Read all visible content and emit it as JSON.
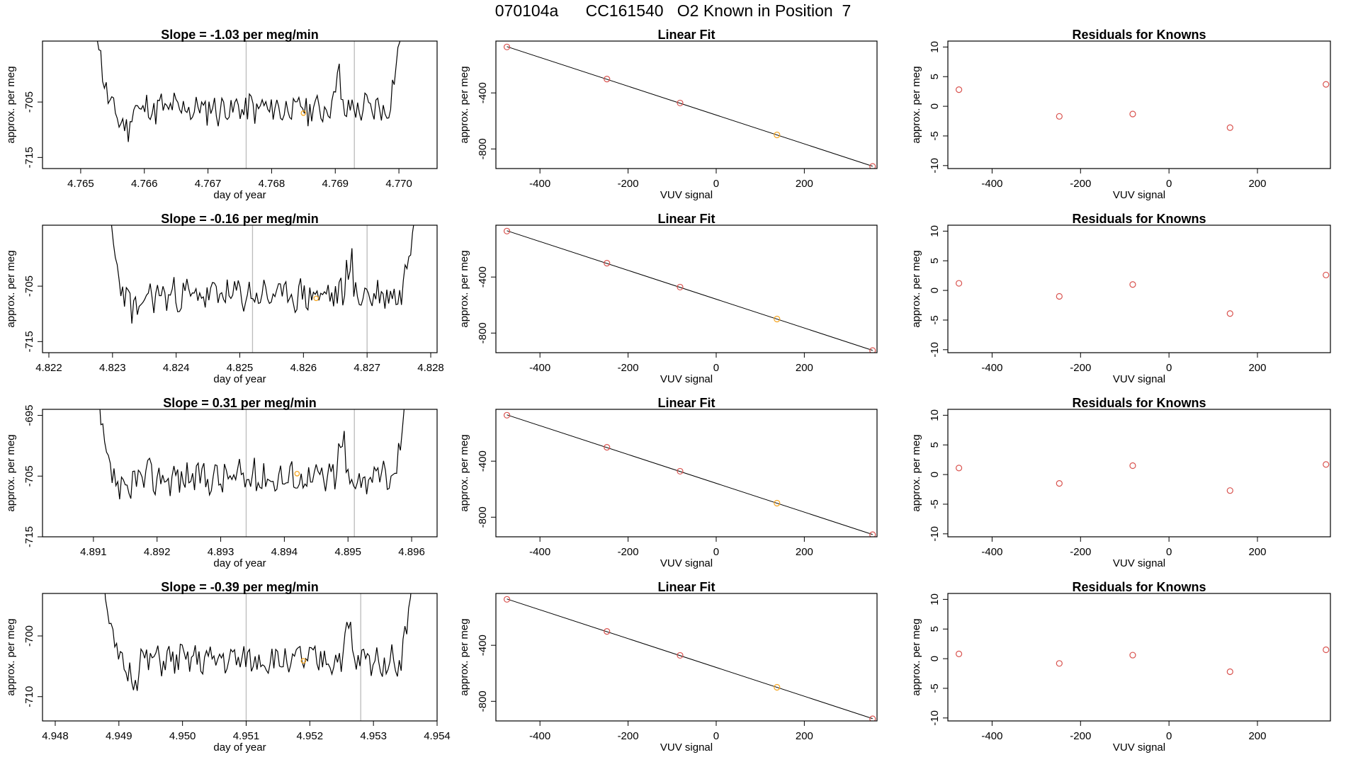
{
  "title": {
    "run_id": "070104a",
    "cylinder": "CC161540",
    "description": "O2 Known in Position  7"
  },
  "colors": {
    "trace": "#000000",
    "known_point": "#f5a623",
    "fit_point": "#d9534f",
    "vline": "#bbbbbb"
  },
  "rows": [
    {
      "series": {
        "type": "line",
        "title": "Slope =  -1.03  per meg/min",
        "xlabel": "day of year",
        "ylabel": "approx. per meg",
        "xlim": [
          4.7644,
          4.7706
        ],
        "ylim": [
          -717,
          -694
        ],
        "xticks": [
          "4.765",
          "4.766",
          "4.767",
          "4.768",
          "4.769",
          "4.770"
        ],
        "yticks": [
          "-705",
          "-715"
        ],
        "vlines": [
          4.7676,
          4.7693
        ],
        "start": 4.7652,
        "end": 4.7701,
        "base": -706.2,
        "amp": 2.6,
        "seed": 11,
        "known_point": [
          4.7685,
          -707.0
        ]
      },
      "fit": {
        "type": "scatter",
        "title": "Linear Fit",
        "xlabel": "VUV signal",
        "ylabel": "approx. per meg",
        "xlim": [
          -500,
          365
        ],
        "ylim": [
          -940,
          -30
        ],
        "xticks": [
          "-400",
          "-200",
          "0",
          "200"
        ],
        "yticks": [
          "-400",
          "-800"
        ],
        "x": [
          -475,
          -248,
          -82,
          138,
          355
        ],
        "y": [
          -72,
          -301,
          -472,
          -700,
          -925
        ]
      },
      "residuals": {
        "type": "scatter",
        "title": "Residuals for Knowns",
        "xlabel": "VUV signal",
        "ylabel": "approx. per meg",
        "xlim": [
          -500,
          365
        ],
        "ylim": [
          -10.5,
          11
        ],
        "xticks": [
          "-400",
          "-200",
          "0",
          "200"
        ],
        "yticks": [
          "10",
          "5",
          "0",
          "-5",
          "-10"
        ],
        "x": [
          -475,
          -248,
          -82,
          138,
          355
        ],
        "y": [
          2.8,
          -1.7,
          -1.3,
          -3.6,
          3.7
        ]
      }
    },
    {
      "series": {
        "type": "line",
        "title": "Slope =  -0.16  per meg/min",
        "xlabel": "day of year",
        "ylabel": "approx. per meg",
        "xlim": [
          4.8219,
          4.8281
        ],
        "ylim": [
          -717,
          -694
        ],
        "xticks": [
          "4.822",
          "4.823",
          "4.824",
          "4.825",
          "4.826",
          "4.827",
          "4.828"
        ],
        "yticks": [
          "-705",
          "-715"
        ],
        "vlines": [
          4.8252,
          4.827
        ],
        "start": 4.8229,
        "end": 4.8278,
        "base": -706.6,
        "amp": 2.6,
        "seed": 23,
        "known_point": [
          4.8262,
          -707.2
        ]
      },
      "fit": {
        "type": "scatter",
        "title": "Linear Fit",
        "xlabel": "VUV signal",
        "ylabel": "approx. per meg",
        "xlim": [
          -500,
          365
        ],
        "ylim": [
          -940,
          -30
        ],
        "xticks": [
          "-400",
          "-200",
          "0",
          "200"
        ],
        "yticks": [
          "-400",
          "-800"
        ],
        "x": [
          -475,
          -248,
          -82,
          138,
          355
        ],
        "y": [
          -72,
          -301,
          -472,
          -700,
          -925
        ]
      },
      "residuals": {
        "type": "scatter",
        "title": "Residuals for Knowns",
        "xlabel": "VUV signal",
        "ylabel": "approx. per meg",
        "xlim": [
          -500,
          365
        ],
        "ylim": [
          -10.5,
          11
        ],
        "xticks": [
          "-400",
          "-200",
          "0",
          "200"
        ],
        "yticks": [
          "10",
          "5",
          "0",
          "-5",
          "-10"
        ],
        "x": [
          -475,
          -248,
          -82,
          138,
          355
        ],
        "y": [
          1.2,
          -1.0,
          1.0,
          -3.9,
          2.6
        ]
      }
    },
    {
      "series": {
        "type": "line",
        "title": "Slope =  0.31  per meg/min",
        "xlabel": "day of year",
        "ylabel": "approx. per meg",
        "xlim": [
          4.8902,
          4.8964
        ],
        "ylim": [
          -715,
          -694
        ],
        "xticks": [
          "4.891",
          "4.892",
          "4.893",
          "4.894",
          "4.895",
          "4.896"
        ],
        "yticks": [
          "-695",
          "-705",
          "-715"
        ],
        "vlines": [
          4.8934,
          4.8951
        ],
        "start": 4.891,
        "end": 4.896,
        "base": -705.2,
        "amp": 2.5,
        "seed": 37,
        "known_point": [
          4.8942,
          -704.6
        ]
      },
      "fit": {
        "type": "scatter",
        "title": "Linear Fit",
        "xlabel": "VUV signal",
        "ylabel": "approx. per meg",
        "xlim": [
          -500,
          365
        ],
        "ylim": [
          -940,
          -30
        ],
        "xticks": [
          "-400",
          "-200",
          "0",
          "200"
        ],
        "yticks": [
          "-400",
          "-800"
        ],
        "x": [
          -475,
          -248,
          -82,
          138,
          355
        ],
        "y": [
          -72,
          -301,
          -472,
          -700,
          -925
        ]
      },
      "residuals": {
        "type": "scatter",
        "title": "Residuals for Knowns",
        "xlabel": "VUV signal",
        "ylabel": "approx. per meg",
        "xlim": [
          -500,
          365
        ],
        "ylim": [
          -10.5,
          11
        ],
        "xticks": [
          "-400",
          "-200",
          "0",
          "200"
        ],
        "yticks": [
          "10",
          "5",
          "0",
          "-5",
          "-10"
        ],
        "x": [
          -475,
          -248,
          -82,
          138,
          355
        ],
        "y": [
          1.1,
          -1.5,
          1.5,
          -2.7,
          1.7
        ]
      }
    },
    {
      "series": {
        "type": "line",
        "title": "Slope =  -0.39  per meg/min",
        "xlabel": "day of year",
        "ylabel": "approx. per meg",
        "xlim": [
          4.9478,
          4.954
        ],
        "ylim": [
          -714,
          -693
        ],
        "xticks": [
          "4.948",
          "4.949",
          "4.950",
          "4.951",
          "4.952",
          "4.953",
          "4.954"
        ],
        "yticks": [
          "-700",
          "-710"
        ],
        "vlines": [
          4.951,
          4.9528
        ],
        "start": 4.9487,
        "end": 4.9537,
        "base": -704.0,
        "amp": 2.2,
        "seed": 51,
        "known_point": [
          4.9519,
          -704.1
        ]
      },
      "fit": {
        "type": "scatter",
        "title": "Linear Fit",
        "xlabel": "VUV signal",
        "ylabel": "approx. per meg",
        "xlim": [
          -500,
          365
        ],
        "ylim": [
          -940,
          -30
        ],
        "xticks": [
          "-400",
          "-200",
          "0",
          "200"
        ],
        "yticks": [
          "-400",
          "-800"
        ],
        "x": [
          -475,
          -248,
          -82,
          138,
          355
        ],
        "y": [
          -72,
          -301,
          -472,
          -700,
          -925
        ]
      },
      "residuals": {
        "type": "scatter",
        "title": "Residuals for Knowns",
        "xlabel": "VUV signal",
        "ylabel": "approx. per meg",
        "xlim": [
          -500,
          365
        ],
        "ylim": [
          -10.5,
          11
        ],
        "xticks": [
          "-400",
          "-200",
          "0",
          "200"
        ],
        "yticks": [
          "10",
          "5",
          "0",
          "-5",
          "-10"
        ],
        "x": [
          -475,
          -248,
          -82,
          138,
          355
        ],
        "y": [
          0.8,
          -0.8,
          0.6,
          -2.2,
          1.5
        ]
      }
    }
  ]
}
